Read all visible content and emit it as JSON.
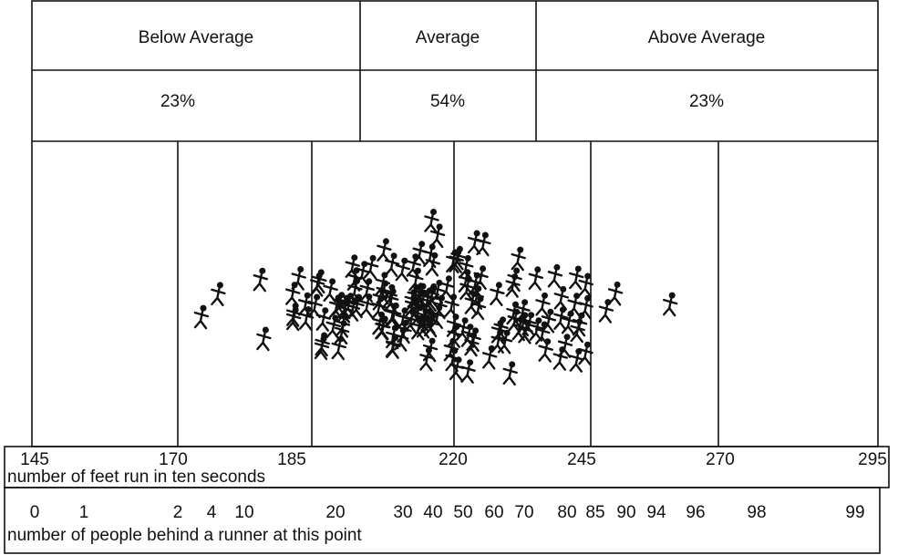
{
  "header": {
    "groups": [
      "Below Average",
      "Average",
      "Above Average"
    ],
    "percents": [
      "23%",
      "54%",
      "23%"
    ]
  },
  "feet_scale": {
    "labels": [
      145,
      170,
      185,
      220,
      245,
      270,
      295
    ],
    "caption": "number of feet run in ten seconds"
  },
  "people_scale": {
    "labels": [
      0,
      1,
      2,
      4,
      10,
      20,
      30,
      40,
      50,
      60,
      70,
      80,
      85,
      90,
      94,
      96,
      98,
      99
    ],
    "caption": "number of people behind a runner at this point"
  }
}
